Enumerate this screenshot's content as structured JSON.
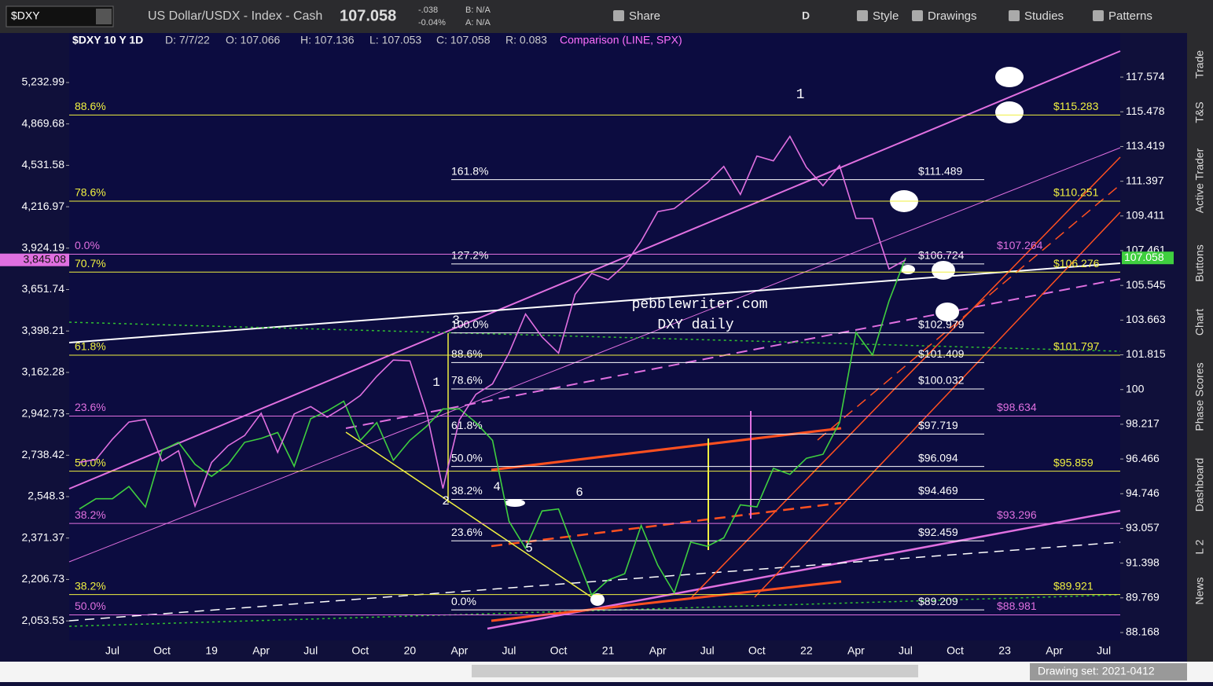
{
  "toolbar": {
    "symbol": "$DXY",
    "description": "US Dollar/USDX - Index - Cash",
    "last": "107.058",
    "change": "-.038",
    "change_pct": "-0.04%",
    "bid": "B: N/A",
    "ask": "A: N/A",
    "aggregation": "D",
    "buttons": [
      "Share",
      "Style",
      "Drawings",
      "Studies",
      "Patterns"
    ]
  },
  "info_bar": {
    "title": "$DXY 10 Y 1D",
    "date": "D: 7/7/22",
    "open": "O: 107.066",
    "high": "H: 107.136",
    "low": "L: 107.053",
    "close": "C: 107.058",
    "range": "R: 0.083",
    "comparison": "Comparison (LINE, SPX)"
  },
  "side_tabs": [
    "Trade",
    "T&S",
    "Active Trader",
    "Buttons",
    "Chart",
    "Phase Scores",
    "Dashboard",
    "L 2",
    "News"
  ],
  "status_bar": {
    "drawing_set": "Drawing set: 2021-0412"
  },
  "chart_data": {
    "type": "line",
    "log_scale": true,
    "categories": [
      null,
      null,
      null,
      "Jul",
      null,
      null,
      "Oct",
      null,
      null,
      "19",
      null,
      null,
      "Apr",
      null,
      null,
      "Jul",
      null,
      null,
      "Oct",
      null,
      null,
      "20",
      null,
      null,
      "Apr",
      null,
      null,
      "Jul",
      null,
      null,
      "Oct",
      null,
      null,
      "21",
      null,
      null,
      "Apr",
      null,
      null,
      "Jul",
      null,
      null,
      "Oct",
      null,
      null,
      "22",
      null,
      null,
      "Apr",
      null,
      null,
      "Jul",
      null,
      null,
      "Oct",
      null,
      null,
      "23",
      null,
      null,
      "Apr",
      null,
      null,
      "Jul",
      null
    ],
    "series": [
      {
        "color": "#3fcf3f",
        "last_label": "107.058",
        "values": [
          null,
          94.0,
          94.5,
          94.5,
          95.1,
          94.1,
          96.9,
          97.3,
          96.2,
          95.6,
          96.2,
          97.3,
          97.5,
          97.8,
          96.1,
          98.5,
          98.9,
          99.4,
          97.4,
          98.3,
          96.4,
          97.4,
          98.1,
          99.0,
          99.0,
          98.3,
          97.4,
          93.4,
          92.1,
          93.9,
          94.0,
          91.9,
          89.9,
          90.6,
          90.9,
          93.2,
          91.3,
          90.0,
          92.4,
          92.2,
          92.6,
          94.2,
          94.1,
          96.0,
          95.7,
          96.5,
          96.7,
          98.3,
          103.0,
          101.8,
          104.7,
          107.058,
          null,
          null,
          null,
          null,
          null,
          null,
          null,
          null,
          null,
          null,
          null,
          null,
          null
        ]
      },
      {
        "color": "#e070e0",
        "axis": "y2",
        "last_label": "3,845.08",
        "values": [
          null,
          2705,
          2718,
          2816,
          2901,
          2914,
          2711,
          2760,
          2507,
          2704,
          2784,
          2834,
          2946,
          2752,
          2942,
          2980,
          2926,
          2977,
          3038,
          3141,
          3231,
          3226,
          2954,
          2585,
          2912,
          3044,
          3100,
          3271,
          3500,
          3363,
          3270,
          3622,
          3756,
          3714,
          3811,
          3973,
          4181,
          4204,
          4298,
          4395,
          4523,
          4308,
          4605,
          4567,
          4766,
          4516,
          4374,
          4530,
          4132,
          4132,
          3785,
          3845.08,
          null,
          null,
          null,
          null,
          null,
          null,
          null,
          null,
          null,
          null,
          null,
          null,
          null
        ]
      }
    ],
    "ylim": [
      87.81,
      120.29
    ],
    "yticks": [
      117.574,
      115.478,
      113.419,
      111.397,
      109.411,
      107.461,
      105.545,
      103.663,
      101.815,
      100,
      98.217,
      96.466,
      94.746,
      93.057,
      91.398,
      89.769,
      88.168
    ],
    "y2lim": [
      1985,
      5703
    ],
    "y2ticks": [
      {
        "value": 5232.99,
        "label": "5,232.99"
      },
      {
        "value": 4869.68,
        "label": "4,869.68"
      },
      {
        "value": 4531.58,
        "label": "4,531.58"
      },
      {
        "value": 4216.97,
        "label": "4,216.97"
      },
      {
        "value": 3924.19,
        "label": "3,924.19"
      },
      {
        "value": 3651.74,
        "label": "3,651.74"
      },
      {
        "value": 3398.21,
        "label": "3,398.21"
      },
      {
        "value": 3162.28,
        "label": "3,162.28"
      },
      {
        "value": 2942.73,
        "label": "2,942.73"
      },
      {
        "value": 2738.42,
        "label": "2,738.42"
      },
      {
        "value": 2548.3,
        "label": "2,548.3"
      },
      {
        "value": 2371.37,
        "label": "2,371.37"
      },
      {
        "value": 2206.73,
        "label": "2,206.73"
      },
      {
        "value": 2053.53,
        "label": "2,053.53"
      }
    ],
    "fib_sets": [
      {
        "color": "#ffffff",
        "levels": [
          {
            "pct": "161.8%",
            "price": "$111.489",
            "value": 111.489
          },
          {
            "pct": "127.2%",
            "price": "$106.724",
            "value": 106.724
          },
          {
            "pct": "100.0%",
            "price": "$102.979",
            "value": 102.979
          },
          {
            "pct": "88.6%",
            "price": "$101.409",
            "value": 101.409
          },
          {
            "pct": "78.6%",
            "price": "$100.032",
            "value": 100.032
          },
          {
            "pct": "61.8%",
            "price": "$97.719",
            "value": 97.719
          },
          {
            "pct": "50.0%",
            "price": "$96.094",
            "value": 96.094
          },
          {
            "pct": "38.2%",
            "price": "$94.469",
            "value": 94.469
          },
          {
            "pct": "23.6%",
            "price": "$92.459",
            "value": 92.459
          },
          {
            "pct": "0.0%",
            "price": "$89.209",
            "value": 89.209
          }
        ]
      },
      {
        "color": "#f0f040",
        "levels": [
          {
            "pct": "88.6%",
            "price": "$115.283",
            "value": 115.283
          },
          {
            "pct": "78.6%",
            "price": "$110.251",
            "value": 110.251
          },
          {
            "pct": "70.7%",
            "price": "$106.276",
            "value": 106.276
          },
          {
            "pct": "61.8%",
            "price": "$101.797",
            "value": 101.797
          },
          {
            "pct": "50.0%",
            "price": "$95.859",
            "value": 95.859
          },
          {
            "pct": "38.2%",
            "price": "$89.921",
            "value": 89.921
          }
        ]
      },
      {
        "color": "#e070e0",
        "levels": [
          {
            "pct": "0.0%",
            "price": "$107.264",
            "value": 107.264
          },
          {
            "pct": "23.6%",
            "price": "$98.634",
            "value": 98.634
          },
          {
            "pct": "38.2%",
            "price": "$93.296",
            "value": 93.296
          },
          {
            "pct": "50.0%",
            "price": "$88.981",
            "value": 88.981
          }
        ]
      }
    ],
    "annotations": [
      "pebblewriter.com",
      "DXY daily",
      "1",
      "2",
      "3",
      "4",
      "5",
      "6",
      "1"
    ]
  }
}
